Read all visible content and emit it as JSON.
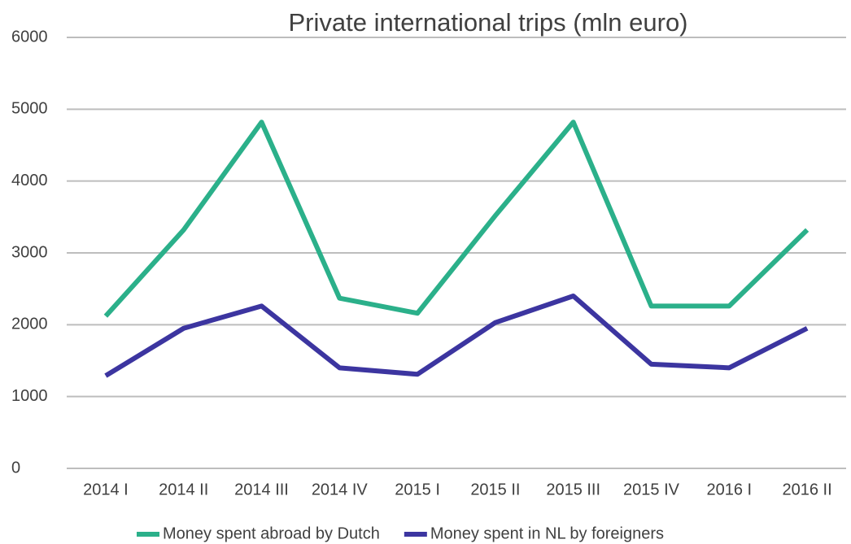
{
  "chart_data": {
    "type": "line",
    "title": "Private international trips (mln euro)",
    "categories": [
      "2014 I",
      "2014 II",
      "2014 III",
      "2014 IV",
      "2015 I",
      "2015 II",
      "2015 III",
      "2015 IV",
      "2016 I",
      "2016 II"
    ],
    "series": [
      {
        "name": "Money spent abroad by Dutch",
        "color": "#2bb08a",
        "values": [
          2120,
          3320,
          4820,
          2370,
          2160,
          3520,
          4820,
          2260,
          2260,
          3320
        ]
      },
      {
        "name": "Money spent in NL by foreigners",
        "color": "#3c35a0",
        "values": [
          1290,
          1950,
          2260,
          1400,
          1310,
          2030,
          2400,
          1450,
          1400,
          1950
        ]
      }
    ],
    "ylim": [
      0,
      6000
    ],
    "yticks": [
      0,
      1000,
      2000,
      3000,
      4000,
      5000,
      6000
    ],
    "grid": true,
    "legend": "bottom"
  }
}
